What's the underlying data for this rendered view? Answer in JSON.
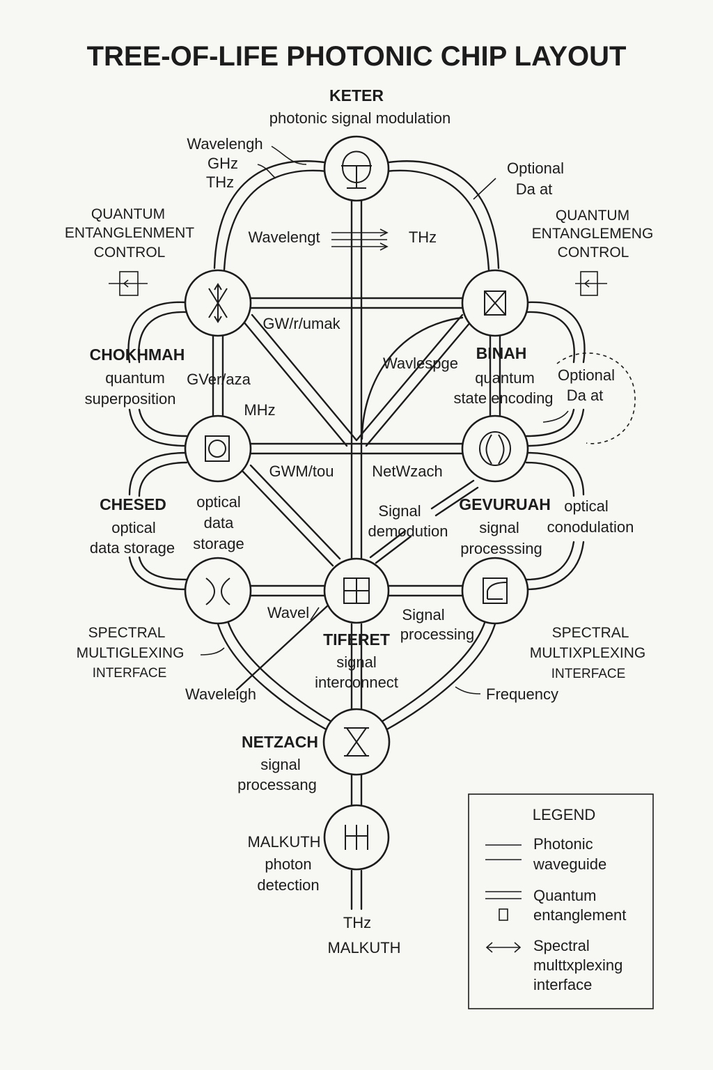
{
  "title": "TREE-OF-LIFE PHOTONIC CHIP LAYOUT",
  "nodes": {
    "keter": {
      "name": "KETER",
      "desc": [
        "photonic signal modulation"
      ]
    },
    "chokhmah": {
      "name": "CHOKHMAH",
      "desc": [
        "quantum",
        "superposition"
      ]
    },
    "binah": {
      "name": "BINAH",
      "desc": [
        "quantum",
        "state encoding"
      ]
    },
    "chesed": {
      "name": "CHESED",
      "desc": [
        "optical",
        "data storage"
      ]
    },
    "gevurah": {
      "name": "GEVURUAH",
      "desc": [
        "signal",
        "processsing"
      ]
    },
    "tiferet": {
      "name": "TIFERET",
      "desc": [
        "signal",
        "interconnect"
      ]
    },
    "netzach": {
      "name": "NETZACH",
      "desc": [
        "signal",
        "processang"
      ]
    },
    "malkuth": {
      "name": "MALKUTH",
      "desc": [
        "photon",
        "detection"
      ]
    }
  },
  "side_labels": {
    "quantum_left": [
      "QUANTUM",
      "ENTANGLENMENT",
      "CONTROL"
    ],
    "quantum_right": [
      "QUANTUM",
      "ENTANGLEMENG",
      "CONTROL"
    ],
    "spectral_left": [
      "SPECTRAL",
      "MULTIGLEXING",
      "INTERFACE"
    ],
    "spectral_right": [
      "SPECTRAL",
      "MULTIXPLEXING",
      "INTERFACE"
    ],
    "optional_top": [
      "Optional",
      "Da at"
    ],
    "optional_mid": [
      "Optional",
      "Da at"
    ],
    "wavelength_top": [
      "Wavelengh",
      "GHz",
      "THz"
    ]
  },
  "annotations": {
    "wavelengt": "Wavelengt",
    "thz_top": "THz",
    "gw_top": "GW/r/umak",
    "wavlespge": "Wavlespge",
    "gveraza": "GVer/aza",
    "mhz": "MHz",
    "gw_mid": "GWM/tou",
    "netwzach": "NetWzach",
    "signal_demod": [
      "Signal",
      "demodution"
    ],
    "optical_data_storage": [
      "optical",
      "data",
      "storage"
    ],
    "optical_conodulation": [
      "optical",
      "conodulation"
    ],
    "wavel": "Wavel",
    "signal_processing": [
      "Signal",
      "processing"
    ],
    "waveleigh": "Waveleigh",
    "frequency": "Frequency",
    "thz_bottom": "THz",
    "malkuth_bottom": "MALKUTH"
  },
  "legend": {
    "title": "LEGEND",
    "items": [
      {
        "icon": "single-line-icon",
        "label": [
          "Photonic",
          "waveguide"
        ]
      },
      {
        "icon": "double-line-icon",
        "label": [
          "Quantum",
          "entanglement"
        ]
      },
      {
        "icon": "double-arrow-icon",
        "label": [
          "Spectral",
          "multtxplexing",
          "interface"
        ]
      }
    ]
  }
}
